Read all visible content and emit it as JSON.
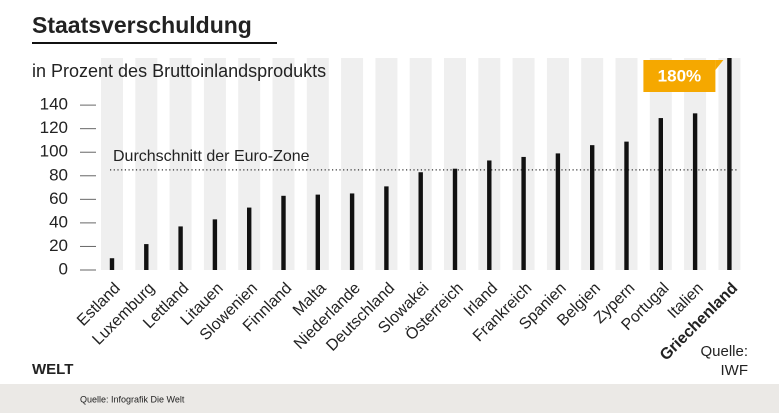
{
  "chart_data": {
    "type": "bar",
    "title": "Staatsverschuldung",
    "subtitle": "in Prozent des Bruttoinlandsprodukts",
    "categories": [
      "Estland",
      "Luxemburg",
      "Lettland",
      "Litauen",
      "Slowenien",
      "Finnland",
      "Malta",
      "Niederlande",
      "Deutschland",
      "Slowakei",
      "Österreich",
      "Irland",
      "Frankreich",
      "Spanien",
      "Belgien",
      "Zypern",
      "Portugal",
      "Italien",
      "Griechenland"
    ],
    "values": [
      10,
      22,
      37,
      43,
      53,
      63,
      64,
      65,
      71,
      83,
      86,
      93,
      96,
      99,
      106,
      109,
      129,
      133,
      180
    ],
    "value_labels": [
      null,
      null,
      null,
      null,
      null,
      null,
      null,
      null,
      null,
      null,
      null,
      null,
      null,
      null,
      null,
      null,
      null,
      null,
      "180%"
    ],
    "color": "#111111",
    "highlight_color": "#f5a800",
    "ylim": [
      0,
      180
    ],
    "yticks": [
      0,
      20,
      40,
      60,
      80,
      100,
      120,
      140
    ],
    "reference": {
      "label": "Durchschnitt der Euro-Zone",
      "value": 85
    },
    "source": [
      "Quelle:",
      "IWF"
    ],
    "brand": "WELT",
    "footer": "Quelle: Infografik Die Welt"
  }
}
